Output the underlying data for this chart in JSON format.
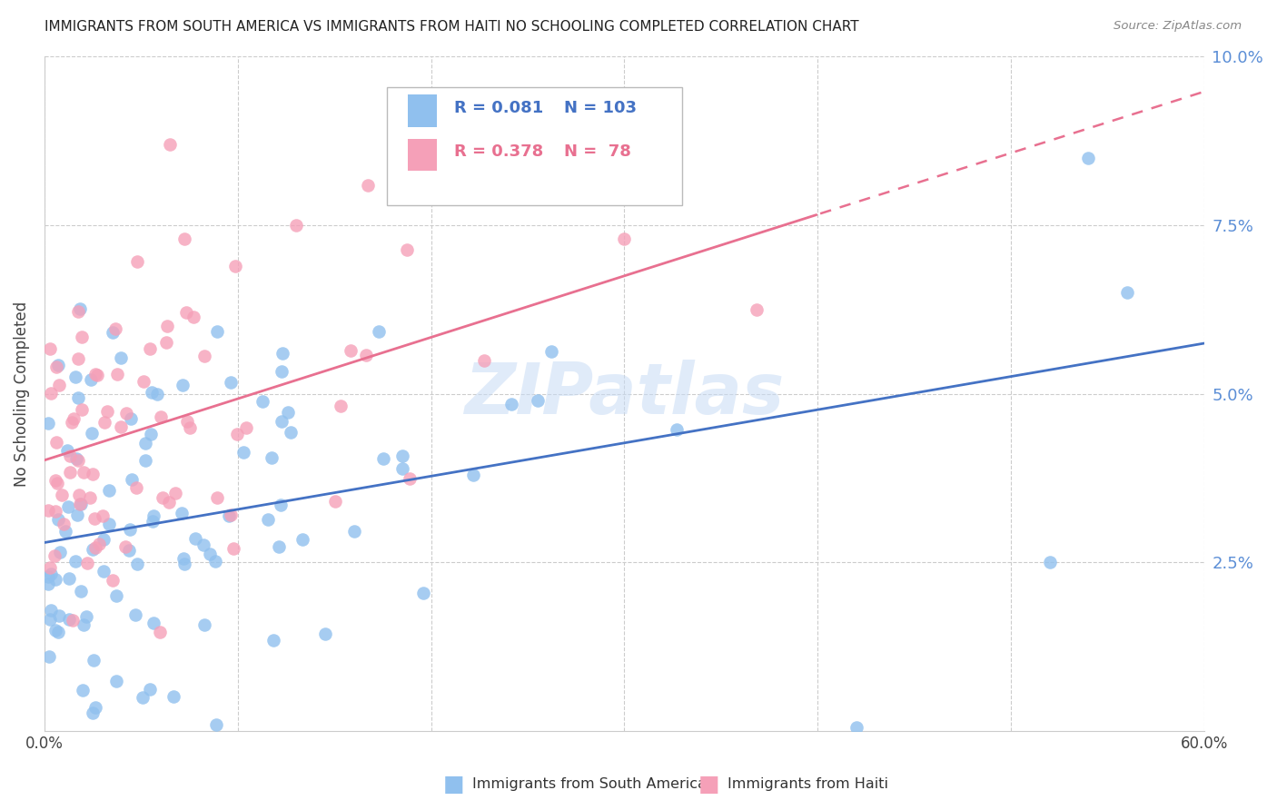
{
  "title": "IMMIGRANTS FROM SOUTH AMERICA VS IMMIGRANTS FROM HAITI NO SCHOOLING COMPLETED CORRELATION CHART",
  "source": "Source: ZipAtlas.com",
  "ylabel": "No Schooling Completed",
  "xlim": [
    0.0,
    0.6
  ],
  "ylim": [
    0.0,
    0.1
  ],
  "yticks": [
    0.025,
    0.05,
    0.075,
    0.1
  ],
  "ytick_labels": [
    "2.5%",
    "5.0%",
    "7.5%",
    "10.0%"
  ],
  "legend_r_blue": "R = 0.081",
  "legend_n_blue": "N = 103",
  "legend_r_pink": "R = 0.378",
  "legend_n_pink": "N =  78",
  "blue_color": "#90C0EE",
  "pink_color": "#F5A0B8",
  "blue_line_color": "#4472C4",
  "pink_line_color": "#E87090",
  "watermark": "ZIPatlas",
  "background_color": "#FFFFFF",
  "grid_color": "#CCCCCC",
  "title_color": "#222222",
  "source_color": "#888888",
  "ylabel_color": "#444444",
  "tick_color": "#5B8ED6"
}
